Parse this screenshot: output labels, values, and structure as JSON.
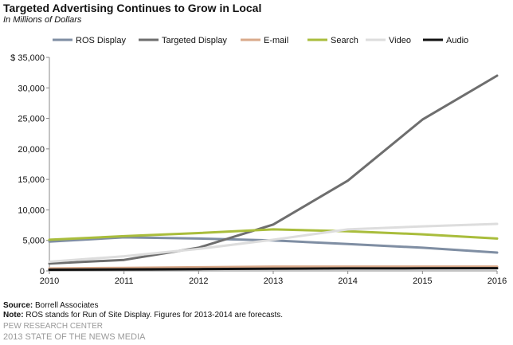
{
  "title": "Targeted Advertising Continues to Grow in Local",
  "subtitle": "In Millions of Dollars",
  "chart_data": {
    "type": "line",
    "title": "Targeted Advertising Continues to Grow in Local",
    "subtitle": "In Millions of Dollars",
    "x": [
      "2010",
      "2011",
      "2012",
      "2013",
      "2014",
      "2015",
      "2016"
    ],
    "ylim": [
      0,
      35000
    ],
    "yticks": [
      0,
      5000,
      10000,
      15000,
      20000,
      25000,
      30000,
      35000
    ],
    "ytick_labels": [
      "0",
      "5,000",
      "10,000",
      "15,000",
      "20,000",
      "25,000",
      "30,000",
      "$ 35,000"
    ],
    "grid": false,
    "legend_position": "top",
    "series": [
      {
        "name": "ROS Display",
        "color": "#7f8ea3",
        "values": [
          4800,
          5500,
          5300,
          5000,
          4400,
          3800,
          3000
        ]
      },
      {
        "name": "Targeted Display",
        "color": "#6e6e6e",
        "values": [
          1200,
          1800,
          3800,
          7600,
          14800,
          24800,
          32000
        ]
      },
      {
        "name": "E-mail",
        "color": "#d9a98a",
        "values": [
          400,
          500,
          600,
          700,
          700,
          700,
          700
        ]
      },
      {
        "name": "Search",
        "color": "#a9bd3c",
        "values": [
          5100,
          5700,
          6200,
          6800,
          6500,
          6000,
          5300
        ]
      },
      {
        "name": "Video",
        "color": "#dddddd",
        "values": [
          1500,
          2400,
          3600,
          5100,
          6800,
          7300,
          7700
        ]
      },
      {
        "name": "Audio",
        "color": "#111111",
        "values": [
          200,
          250,
          300,
          350,
          400,
          420,
          450
        ]
      }
    ]
  },
  "footer": {
    "source_label": "Source:",
    "source_text": " Borrell Associates",
    "note_label": "Note:",
    "note_text": " ROS stands for Run of Site Display. Figures for 2013-2014 are forecasts.",
    "org": "PEW RESEARCH CENTER",
    "report": "2013 STATE OF THE NEWS MEDIA"
  }
}
